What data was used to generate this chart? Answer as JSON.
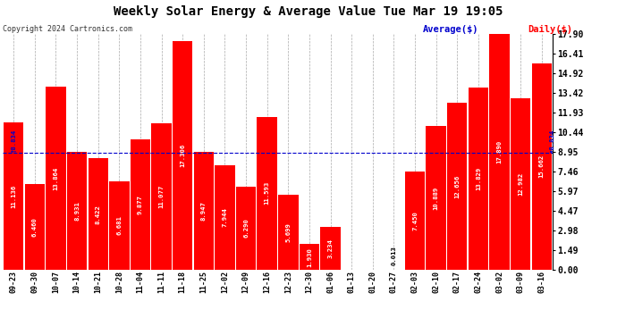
{
  "title": "Weekly Solar Energy & Average Value Tue Mar 19 19:05",
  "copyright": "Copyright 2024 Cartronics.com",
  "average_label": "Average($)",
  "daily_label": "Daily($)",
  "average_value": 8.834,
  "ylim": [
    0,
    17.9
  ],
  "yticks": [
    0.0,
    1.49,
    2.98,
    4.47,
    5.97,
    7.46,
    8.95,
    10.44,
    11.93,
    13.42,
    14.92,
    16.41,
    17.9
  ],
  "bar_color": "#ff0000",
  "avg_line_color": "#0000cd",
  "background_color": "#ffffff",
  "grid_color": "#aaaaaa",
  "categories": [
    "09-23",
    "09-30",
    "10-07",
    "10-14",
    "10-21",
    "10-28",
    "11-04",
    "11-11",
    "11-18",
    "11-25",
    "12-02",
    "12-09",
    "12-16",
    "12-23",
    "12-30",
    "01-06",
    "01-13",
    "01-20",
    "01-27",
    "02-03",
    "02-10",
    "02-17",
    "02-24",
    "03-02",
    "03-09",
    "03-16"
  ],
  "values": [
    11.136,
    6.46,
    13.864,
    8.931,
    8.422,
    6.681,
    9.877,
    11.077,
    17.306,
    8.947,
    7.944,
    6.29,
    11.593,
    5.699,
    1.93,
    3.234,
    0.0,
    0.0,
    0.013,
    7.45,
    10.889,
    12.656,
    13.829,
    17.89,
    12.982,
    15.662
  ],
  "title_fontsize": 10,
  "copyright_fontsize": 6,
  "legend_fontsize": 7.5,
  "ytick_fontsize": 7,
  "xtick_fontsize": 6,
  "label_fontsize": 5.2
}
